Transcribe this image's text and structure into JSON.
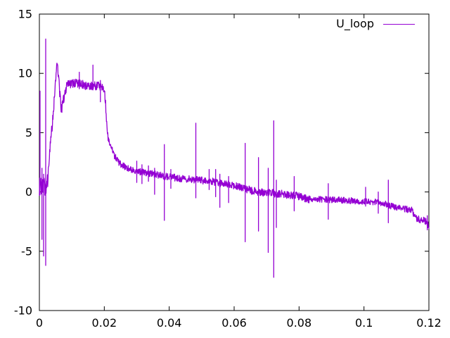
{
  "figure": {
    "background_color": "#ffffff",
    "border_color": "#000000",
    "text_color": "#000000",
    "accent_color": "#9400d3"
  },
  "chart_data": {
    "type": "line",
    "title": "",
    "xlabel": "",
    "ylabel": "",
    "xlim": [
      0,
      0.12
    ],
    "ylim": [
      -10,
      15
    ],
    "grid": false,
    "x_ticks": [
      0,
      0.02,
      0.04,
      0.06,
      0.08,
      0.1,
      0.12
    ],
    "x_tick_labels": [
      "0",
      "0.02",
      "0.04",
      "0.06",
      "0.08",
      "0.1",
      "0.12"
    ],
    "y_ticks": [
      -10,
      -5,
      0,
      5,
      10,
      15
    ],
    "y_tick_labels": [
      "-10",
      "-5",
      "0",
      "5",
      "10",
      "15"
    ],
    "legend": {
      "position": "top-right",
      "entries": [
        {
          "label": "U_loop",
          "color": "#9400d3"
        }
      ]
    },
    "series": [
      {
        "name": "U_loop",
        "color": "#9400d3",
        "description": "Noisy signal: initial transient spikes (+12.9/-6.2) near x=0.002, rise to peak 11.4 at x=0.0054, dip to 6.9 at x=0.0067, plateau ~9.1 until x=0.02, steep drop to ~2.4, slow decay through 0 near x=0.068, ending near -2.8 at x=0.12, with sharp spikes throughout",
        "baseline_keypoints": [
          [
            0.0,
            0.45
          ],
          [
            0.0024,
            0.45
          ],
          [
            0.0026,
            1.2
          ],
          [
            0.003,
            2.8
          ],
          [
            0.0036,
            4.6
          ],
          [
            0.0042,
            6.4
          ],
          [
            0.0048,
            8.6
          ],
          [
            0.0051,
            9.6
          ],
          [
            0.0054,
            11.2
          ],
          [
            0.0058,
            10.2
          ],
          [
            0.0062,
            8.6
          ],
          [
            0.0067,
            6.9
          ],
          [
            0.0072,
            7.4
          ],
          [
            0.0078,
            8.3
          ],
          [
            0.0085,
            9.0
          ],
          [
            0.0095,
            9.15
          ],
          [
            0.013,
            9.15
          ],
          [
            0.014,
            9.0
          ],
          [
            0.0196,
            8.95
          ],
          [
            0.02,
            8.6
          ],
          [
            0.0204,
            7.5
          ],
          [
            0.0208,
            5.5
          ],
          [
            0.0212,
            4.5
          ],
          [
            0.022,
            3.8
          ],
          [
            0.0232,
            3.0
          ],
          [
            0.0248,
            2.4
          ],
          [
            0.027,
            2.0
          ],
          [
            0.03,
            1.75
          ],
          [
            0.034,
            1.55
          ],
          [
            0.038,
            1.35
          ],
          [
            0.043,
            1.15
          ],
          [
            0.049,
            1.0
          ],
          [
            0.053,
            0.9
          ],
          [
            0.056,
            0.7
          ],
          [
            0.059,
            0.6
          ],
          [
            0.0625,
            0.35
          ],
          [
            0.0655,
            0.1
          ],
          [
            0.069,
            -0.05
          ],
          [
            0.074,
            -0.15
          ],
          [
            0.079,
            -0.3
          ],
          [
            0.0805,
            -0.45
          ],
          [
            0.083,
            -0.6
          ],
          [
            0.09,
            -0.65
          ],
          [
            0.0965,
            -0.75
          ],
          [
            0.1,
            -0.8
          ],
          [
            0.1042,
            -0.85
          ],
          [
            0.1065,
            -1.0
          ],
          [
            0.1085,
            -1.2
          ],
          [
            0.1105,
            -1.35
          ],
          [
            0.113,
            -1.45
          ],
          [
            0.1148,
            -1.55
          ],
          [
            0.1154,
            -2.1
          ],
          [
            0.117,
            -2.3
          ],
          [
            0.119,
            -2.45
          ],
          [
            0.1198,
            -2.8
          ]
        ],
        "noise_segments": [
          [
            0.0,
            0.0026,
            0.75
          ],
          [
            0.0026,
            0.0095,
            0.5
          ],
          [
            0.0095,
            0.0205,
            0.38
          ],
          [
            0.0205,
            0.0295,
            0.28
          ],
          [
            0.0295,
            0.0635,
            0.3
          ],
          [
            0.0635,
            0.0835,
            0.33
          ],
          [
            0.0835,
            0.1145,
            0.27
          ],
          [
            0.1145,
            0.12,
            0.3
          ]
        ],
        "spikes": [
          [
            0.0002,
            8.5,
            -0.2
          ],
          [
            0.0008,
            2.0,
            -4.0
          ],
          [
            0.0013,
            1.5,
            -5.4
          ],
          [
            0.00195,
            12.9,
            -6.2
          ],
          [
            0.0123,
            10.1,
            8.7
          ],
          [
            0.0165,
            10.7,
            8.6
          ],
          [
            0.0188,
            9.4,
            7.6
          ],
          [
            0.03,
            2.6,
            0.8
          ],
          [
            0.0316,
            2.3,
            0.7
          ],
          [
            0.0336,
            2.2,
            0.9
          ],
          [
            0.0355,
            2.0,
            -0.2
          ],
          [
            0.0385,
            4.0,
            -2.4
          ],
          [
            0.0405,
            1.9,
            0.3
          ],
          [
            0.0482,
            5.8,
            -0.5
          ],
          [
            0.0523,
            1.9,
            0.2
          ],
          [
            0.0543,
            1.9,
            -0.4
          ],
          [
            0.0556,
            1.5,
            -1.3
          ],
          [
            0.0583,
            1.3,
            -0.9
          ],
          [
            0.0634,
            4.1,
            -4.2
          ],
          [
            0.0675,
            2.9,
            -3.3
          ],
          [
            0.0705,
            2.0,
            -5.1
          ],
          [
            0.0722,
            6.0,
            -7.2
          ],
          [
            0.073,
            1.0,
            -3.0
          ],
          [
            0.0785,
            1.3,
            -1.6
          ],
          [
            0.089,
            0.7,
            -2.3
          ],
          [
            0.1005,
            0.4,
            -1.2
          ],
          [
            0.1044,
            0.0,
            -1.8
          ],
          [
            0.1075,
            1.0,
            -2.6
          ],
          [
            0.1195,
            -2.0,
            -3.2
          ]
        ]
      }
    ]
  }
}
